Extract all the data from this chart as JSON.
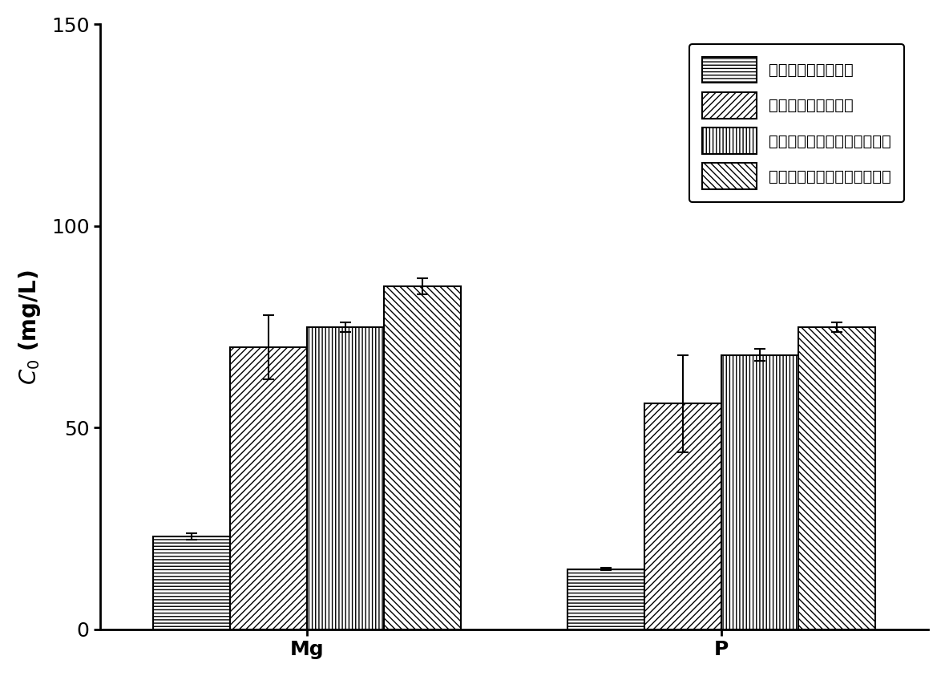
{
  "groups": [
    "Mg",
    "P"
  ],
  "series_labels": [
    "剩余污泥厉氧消化前",
    "剩余污泥厉氧消化后",
    "剩余污泥芬顿调理厉氧消化前",
    "剩余污泥芬顿调理厉氧消化后"
  ],
  "values": {
    "Mg": [
      23,
      70,
      75,
      85
    ],
    "P": [
      15,
      56,
      68,
      75
    ]
  },
  "errors": {
    "Mg": [
      0.8,
      8.0,
      1.2,
      2.0
    ],
    "P": [
      0.3,
      12.0,
      1.5,
      1.2
    ]
  },
  "ylim": [
    0,
    150
  ],
  "yticks": [
    0,
    50,
    100,
    150
  ],
  "bar_width": 0.13,
  "group_centers": [
    0.35,
    1.05
  ],
  "xlim": [
    0.0,
    1.4
  ],
  "background_color": "#ffffff",
  "font_size": 18,
  "legend_font_size": 14,
  "hatch_patterns": [
    "----",
    "////",
    "||||",
    "\\\\\\\\"
  ]
}
